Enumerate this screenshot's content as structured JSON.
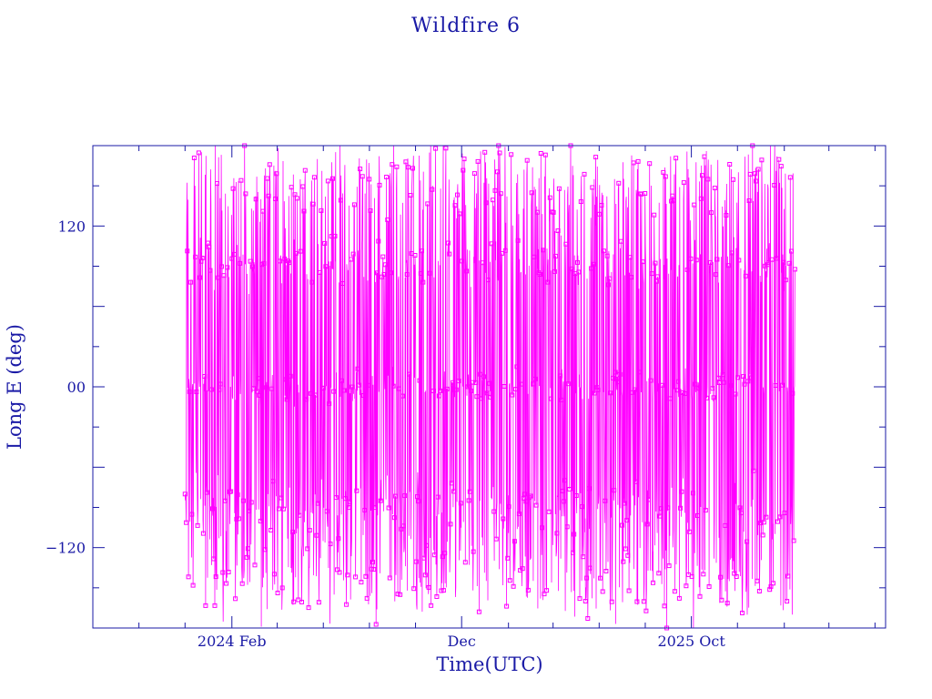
{
  "chart_data": {
    "type": "line",
    "title": "Wildfire 6",
    "xlabel": "Time(UTC)",
    "ylabel": "Long E (deg)",
    "x_range": [
      "2023-08-01",
      "2026-06-15"
    ],
    "data_range": [
      "2023-12-01",
      "2026-02-15"
    ],
    "ylim": [
      -180,
      180
    ],
    "y_ticks": [
      {
        "value": 120,
        "label": "120"
      },
      {
        "value": 0,
        "label": "00"
      },
      {
        "value": -120,
        "label": "−120"
      }
    ],
    "x_ticks": [
      {
        "value": "2024-02-01",
        "label": "2024 Feb"
      },
      {
        "value": "2024-12-01",
        "label": "Dec"
      },
      {
        "value": "2025-10-01",
        "label": "2025 Oct"
      }
    ],
    "series": [
      {
        "color": "#ff00ff",
        "marker": "square",
        "line": true
      }
    ],
    "pattern_description": {
      "approx_points": 1600,
      "clusters_deg": [
        {
          "center": 150,
          "spread": 30
        },
        {
          "center": 90,
          "spread": 15
        },
        {
          "center": 0,
          "spread": 10
        },
        {
          "center": -90,
          "spread": 20
        },
        {
          "center": -140,
          "spread": 30
        }
      ]
    },
    "grid": false,
    "legend": "none"
  },
  "colors": {
    "axis": "#1a1aa6",
    "series": "#ff00ff",
    "background": "#ffffff"
  }
}
